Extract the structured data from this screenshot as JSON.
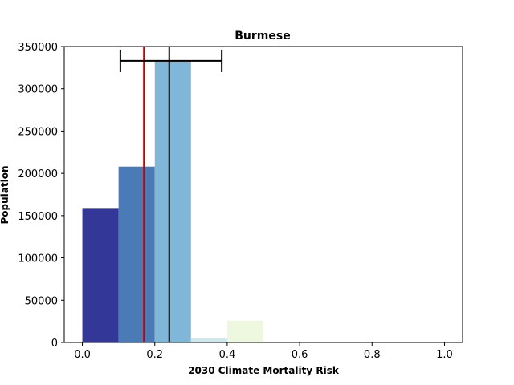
{
  "chart_data": {
    "type": "bar",
    "title": "Burmese",
    "xlabel": "2030 Climate Mortality Risk",
    "ylabel": "Population",
    "xlim": [
      -0.05,
      1.05
    ],
    "ylim": [
      0,
      350000
    ],
    "xticks": [
      0.0,
      0.2,
      0.4,
      0.6,
      0.8,
      1.0
    ],
    "xtick_labels": [
      "0.0",
      "0.2",
      "0.4",
      "0.6",
      "0.8",
      "1.0"
    ],
    "yticks": [
      0,
      50000,
      100000,
      150000,
      200000,
      250000,
      300000,
      350000
    ],
    "ytick_labels": [
      "0",
      "50000",
      "100000",
      "150000",
      "200000",
      "250000",
      "300000",
      "350000"
    ],
    "bins": [
      {
        "x0": 0.0,
        "x1": 0.1,
        "value": 159000,
        "color": "#333797"
      },
      {
        "x0": 0.1,
        "x1": 0.2,
        "value": 208000,
        "color": "#4a7bb7"
      },
      {
        "x0": 0.2,
        "x1": 0.3,
        "value": 333000,
        "color": "#80b6d7"
      },
      {
        "x0": 0.3,
        "x1": 0.4,
        "value": 5000,
        "color": "#cfe8ee"
      },
      {
        "x0": 0.4,
        "x1": 0.5,
        "value": 26000,
        "color": "#eef8df"
      }
    ],
    "reference_lines": [
      {
        "x": 0.17,
        "color": "#cc0000"
      },
      {
        "x": 0.24,
        "color": "#000000"
      }
    ],
    "interval": {
      "low": 0.105,
      "high": 0.385,
      "y": 333000,
      "color": "#000000"
    }
  }
}
